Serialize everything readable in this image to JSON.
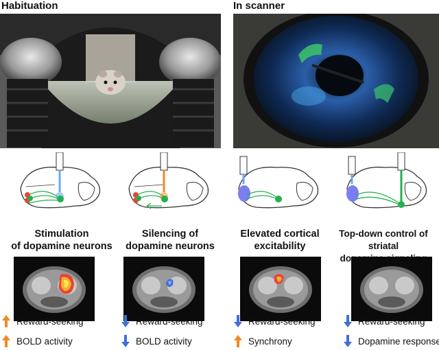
{
  "panels": {
    "left_title": "Habituation",
    "right_title": "In scanner"
  },
  "conditions": [
    {
      "caption_line1": "Stimulation",
      "caption_line2": "of dopamine neurons",
      "caption_full": [
        "Stimulation",
        "of dopamine neurons"
      ],
      "outcomes": [
        {
          "label": "Reward-seeking",
          "direction": "up"
        },
        {
          "label": "BOLD activity",
          "direction": "up"
        }
      ]
    },
    {
      "caption_full": [
        "Silencing of",
        "dopamine neurons"
      ],
      "outcomes": [
        {
          "label": "Reward-seeking",
          "direction": "down"
        },
        {
          "label": "BOLD activity",
          "direction": "down"
        }
      ]
    },
    {
      "caption_full": [
        "Elevated cortical",
        "excitability"
      ],
      "outcomes": [
        {
          "label": "Reward-seeking",
          "direction": "down"
        },
        {
          "label": "Synchrony",
          "direction": "up"
        }
      ]
    },
    {
      "caption_full": [
        "Top-down control of striatal",
        "dopamine signaling"
      ],
      "outcomes": [
        {
          "label": "Reward-seeking",
          "direction": "down"
        },
        {
          "label": "Dopamine response",
          "direction": "down"
        }
      ]
    }
  ],
  "colors": {
    "up_arrow": "#f08a24",
    "down_arrow": "#3f6fd8",
    "green_neuron": "#22b14c",
    "red_neuron": "#e8433a",
    "blue_light": "#6aa9e8",
    "orange_light": "#f08a24",
    "violet_area": "#7a7ef0"
  }
}
